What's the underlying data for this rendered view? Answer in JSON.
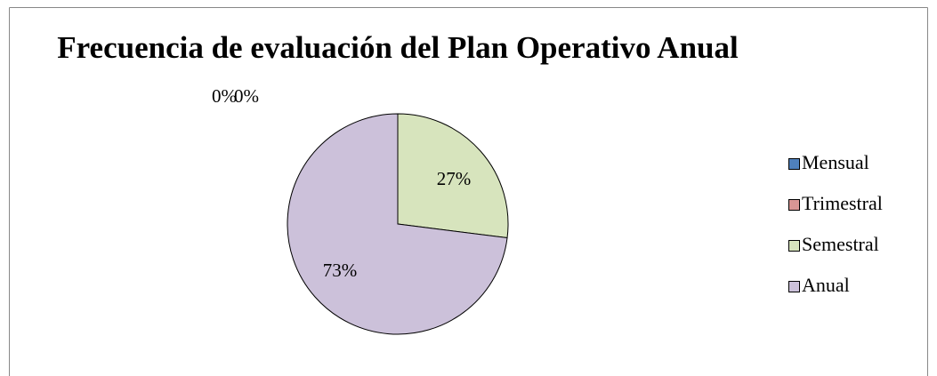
{
  "chart_data": {
    "type": "pie",
    "title": "Frecuencia de evaluación del Plan Operativo Anual",
    "categories": [
      "Mensual",
      "Trimestral",
      "Semestral",
      "Anual"
    ],
    "values": [
      0,
      0,
      27,
      73
    ],
    "value_labels": [
      "0%",
      "0%",
      "27%",
      "73%"
    ],
    "colors": [
      "#4f81bd",
      "#d99694",
      "#d7e4bd",
      "#ccc1da"
    ],
    "legend": "right"
  }
}
